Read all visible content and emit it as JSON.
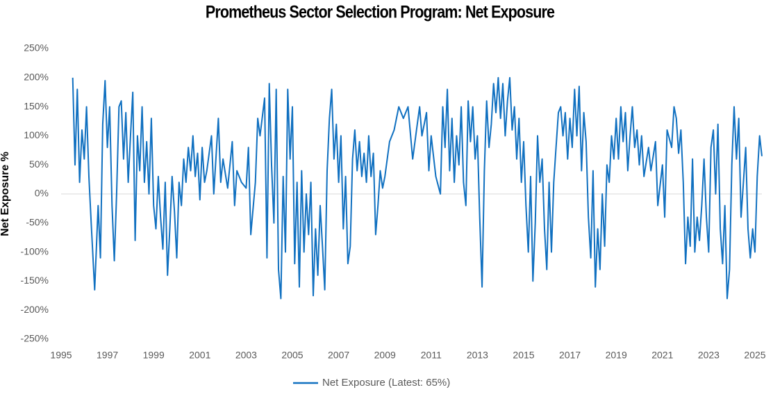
{
  "chart_data": {
    "type": "line",
    "title": "Prometheus Sector Selection Program: Net Exposure",
    "y_label": "Net Exposure %",
    "x": [
      1995.5,
      1995.6,
      1995.7,
      1995.8,
      1995.9,
      1996,
      1996.1,
      1996.2,
      1996.3,
      1996.45,
      1996.6,
      1996.7,
      1996.8,
      1996.9,
      1997,
      1997.1,
      1997.2,
      1997.3,
      1997.4,
      1997.5,
      1997.6,
      1997.7,
      1997.8,
      1997.9,
      1998,
      1998.1,
      1998.2,
      1998.3,
      1998.4,
      1998.5,
      1998.6,
      1998.7,
      1998.8,
      1998.9,
      1999,
      1999.1,
      1999.2,
      1999.3,
      1999.4,
      1999.5,
      1999.6,
      1999.7,
      1999.8,
      1999.9,
      2000,
      2000.1,
      2000.2,
      2000.3,
      2000.4,
      2000.5,
      2000.6,
      2000.7,
      2000.8,
      2000.9,
      2001,
      2001.1,
      2001.2,
      2001.3,
      2001.5,
      2001.6,
      2001.8,
      2001.9,
      2002,
      2002.2,
      2002.4,
      2002.5,
      2002.6,
      2002.8,
      2003,
      2003.1,
      2003.2,
      2003.4,
      2003.5,
      2003.6,
      2003.8,
      2003.9,
      2004,
      2004.1,
      2004.2,
      2004.3,
      2004.4,
      2004.5,
      2004.6,
      2004.7,
      2004.8,
      2004.9,
      2005,
      2005.1,
      2005.2,
      2005.3,
      2005.4,
      2005.5,
      2005.6,
      2005.7,
      2005.8,
      2005.9,
      2006,
      2006.1,
      2006.2,
      2006.3,
      2006.4,
      2006.5,
      2006.6,
      2006.7,
      2006.8,
      2006.9,
      2007,
      2007.1,
      2007.2,
      2007.3,
      2007.4,
      2007.5,
      2007.6,
      2007.7,
      2007.8,
      2007.9,
      2008,
      2008.1,
      2008.2,
      2008.3,
      2008.4,
      2008.5,
      2008.6,
      2008.7,
      2008.8,
      2008.9,
      2009,
      2009.2,
      2009.4,
      2009.6,
      2009.8,
      2010,
      2010.2,
      2010.4,
      2010.5,
      2010.6,
      2010.8,
      2010.9,
      2011,
      2011.2,
      2011.4,
      2011.5,
      2011.6,
      2011.7,
      2011.8,
      2011.9,
      2012,
      2012.1,
      2012.2,
      2012.3,
      2012.4,
      2012.5,
      2012.6,
      2012.7,
      2012.8,
      2012.9,
      2013,
      2013.1,
      2013.2,
      2013.3,
      2013.4,
      2013.5,
      2013.6,
      2013.7,
      2013.8,
      2013.9,
      2014,
      2014.1,
      2014.2,
      2014.3,
      2014.4,
      2014.5,
      2014.6,
      2014.7,
      2014.8,
      2014.9,
      2015,
      2015.1,
      2015.2,
      2015.3,
      2015.4,
      2015.5,
      2015.6,
      2015.7,
      2015.8,
      2015.9,
      2016,
      2016.1,
      2016.2,
      2016.3,
      2016.4,
      2016.5,
      2016.6,
      2016.7,
      2016.8,
      2016.9,
      2017,
      2017.1,
      2017.2,
      2017.3,
      2017.4,
      2017.5,
      2017.6,
      2017.7,
      2017.8,
      2017.9,
      2018,
      2018.1,
      2018.2,
      2018.3,
      2018.4,
      2018.5,
      2018.6,
      2018.7,
      2018.8,
      2018.9,
      2019,
      2019.1,
      2019.2,
      2019.3,
      2019.4,
      2019.5,
      2019.6,
      2019.7,
      2019.8,
      2019.9,
      2020,
      2020.1,
      2020.2,
      2020.4,
      2020.5,
      2020.7,
      2020.8,
      2021,
      2021.1,
      2021.2,
      2021.4,
      2021.5,
      2021.6,
      2021.7,
      2021.8,
      2021.9,
      2022,
      2022.1,
      2022.2,
      2022.3,
      2022.4,
      2022.5,
      2022.6,
      2022.7,
      2022.8,
      2022.9,
      2023,
      2023.1,
      2023.2,
      2023.3,
      2023.4,
      2023.5,
      2023.6,
      2023.7,
      2023.8,
      2023.9,
      2024,
      2024.1,
      2024.2,
      2024.3,
      2024.4,
      2024.5,
      2024.6,
      2024.7,
      2024.8,
      2024.9,
      2025,
      2025.1,
      2025.2,
      2025.3
    ],
    "series": [
      {
        "name": "Net Exposure (Latest: 65%)",
        "color": "#1070c0",
        "values": [
          200,
          50,
          180,
          20,
          110,
          60,
          150,
          30,
          -50,
          -165,
          -20,
          -110,
          120,
          195,
          80,
          150,
          -20,
          -115,
          0,
          150,
          160,
          60,
          140,
          20,
          100,
          175,
          -80,
          100,
          40,
          150,
          20,
          90,
          0,
          130,
          -20,
          -60,
          30,
          -40,
          -95,
          20,
          -140,
          -60,
          30,
          -30,
          -110,
          20,
          -20,
          60,
          20,
          80,
          40,
          100,
          30,
          70,
          -10,
          80,
          20,
          40,
          100,
          0,
          130,
          20,
          60,
          10,
          90,
          -20,
          40,
          20,
          10,
          80,
          -70,
          20,
          130,
          100,
          165,
          -110,
          190,
          50,
          -50,
          180,
          -130,
          -180,
          30,
          -100,
          180,
          60,
          150,
          -120,
          20,
          -160,
          40,
          -100,
          0,
          -70,
          20,
          -175,
          -60,
          -140,
          -20,
          -90,
          -165,
          40,
          130,
          180,
          60,
          120,
          20,
          100,
          -60,
          30,
          -120,
          -90,
          60,
          110,
          40,
          90,
          30,
          70,
          20,
          100,
          30,
          70,
          -70,
          -20,
          40,
          10,
          30,
          90,
          110,
          150,
          130,
          150,
          60,
          120,
          150,
          100,
          140,
          40,
          100,
          30,
          0,
          150,
          80,
          180,
          40,
          130,
          20,
          100,
          50,
          150,
          20,
          -20,
          160,
          90,
          150,
          60,
          100,
          -40,
          -160,
          40,
          160,
          80,
          120,
          190,
          140,
          200,
          130,
          190,
          100,
          160,
          200,
          110,
          150,
          60,
          130,
          20,
          90,
          -20,
          -100,
          30,
          -150,
          -50,
          100,
          20,
          60,
          -60,
          -130,
          20,
          -100,
          20,
          80,
          140,
          150,
          100,
          140,
          60,
          130,
          80,
          180,
          100,
          185,
          40,
          140,
          90,
          -40,
          -110,
          40,
          -160,
          -60,
          -130,
          0,
          -90,
          50,
          20,
          100,
          60,
          130,
          60,
          150,
          90,
          140,
          40,
          100,
          150,
          80,
          110,
          50,
          100,
          30,
          80,
          40,
          90,
          -20,
          50,
          -40,
          110,
          80,
          150,
          130,
          70,
          110,
          20,
          -120,
          -40,
          -90,
          60,
          -100,
          -40,
          -80,
          -20,
          60,
          -40,
          -100,
          80,
          110,
          0,
          120,
          -60,
          -120,
          -20,
          -180,
          -130,
          50,
          150,
          60,
          130,
          -40,
          20,
          80,
          -60,
          -110,
          -60,
          -100,
          30,
          100,
          65
        ]
      }
    ],
    "xlim": [
      1995,
      2025.3
    ],
    "xticks": [
      1995,
      1997,
      1999,
      2001,
      2003,
      2005,
      2007,
      2009,
      2011,
      2013,
      2015,
      2017,
      2019,
      2021,
      2023,
      2025
    ],
    "ylim": [
      -250,
      250
    ],
    "yticks": [
      {
        "value": 250,
        "label": "250%"
      },
      {
        "value": 200,
        "label": "200%"
      },
      {
        "value": 150,
        "label": "150%"
      },
      {
        "value": 100,
        "label": "100%"
      },
      {
        "value": 50,
        "label": "50%"
      },
      {
        "value": 0,
        "label": "0%"
      },
      {
        "value": -50,
        "label": "-50%"
      },
      {
        "value": -100,
        "label": "-100%"
      },
      {
        "value": -150,
        "label": "-150%"
      },
      {
        "value": -200,
        "label": "-200%"
      },
      {
        "value": -250,
        "label": "-250%"
      }
    ],
    "grid": false,
    "legend": "bottom"
  }
}
